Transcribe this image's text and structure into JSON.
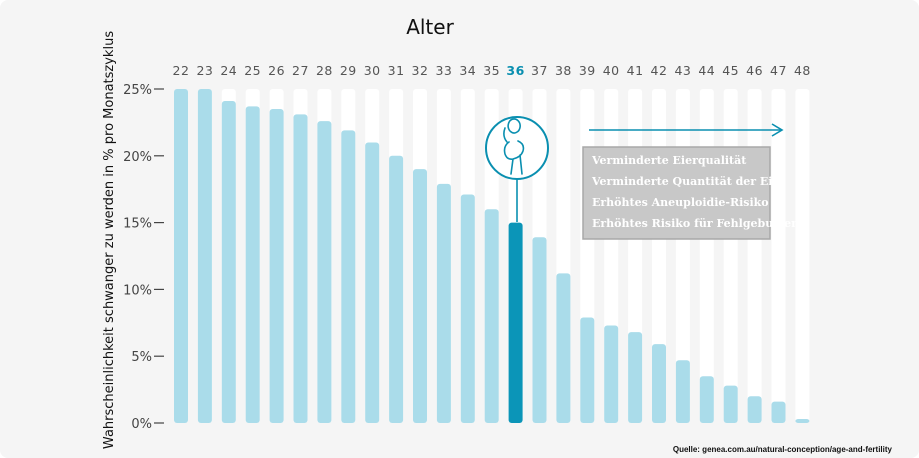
{
  "colors": {
    "bar": "#aadcea",
    "bar_highlight": "#0b95b8",
    "track": "#ffffff",
    "accent": "#0a8fb0",
    "risk_box": "#c8c8c8",
    "background": "#f5f5f5"
  },
  "icons": {
    "pregnancy": "pregnant-woman-icon",
    "arrow": "arrow-right-icon"
  },
  "risk_box": {
    "items": [
      "Verminderte Eierqualität",
      "Verminderte Quantität der Eier",
      "Erhöhtes Aneuploidie-Risiko",
      "Erhöhtes Risiko für Fehlgeburten"
    ]
  },
  "source": "Quelle: genea.com.au/natural-conception/age-and-fertility",
  "chart_data": {
    "type": "bar",
    "title": "Alter",
    "xlabel": "",
    "ylabel": "Wahrscheinlichkeit schwanger zu werden in % pro Monatszyklus",
    "categories": [
      "22",
      "23",
      "24",
      "25",
      "26",
      "27",
      "28",
      "29",
      "30",
      "31",
      "32",
      "33",
      "34",
      "35",
      "36",
      "37",
      "38",
      "39",
      "40",
      "41",
      "42",
      "43",
      "44",
      "45",
      "46",
      "47",
      "48"
    ],
    "values": [
      25,
      25,
      24.1,
      23.7,
      23.5,
      23.1,
      22.6,
      21.9,
      21.0,
      20.0,
      19.0,
      17.9,
      17.1,
      16.0,
      15.0,
      13.9,
      11.2,
      7.9,
      7.3,
      6.8,
      5.9,
      4.7,
      3.5,
      2.8,
      2.0,
      1.6,
      0.3
    ],
    "highlight": "36",
    "ylim": [
      0,
      25
    ],
    "yticks": [
      0,
      5,
      10,
      15,
      20,
      25
    ],
    "ytick_labels": [
      "0%",
      "5%",
      "10%",
      "15%",
      "20%",
      "25%"
    ],
    "grid": false
  }
}
